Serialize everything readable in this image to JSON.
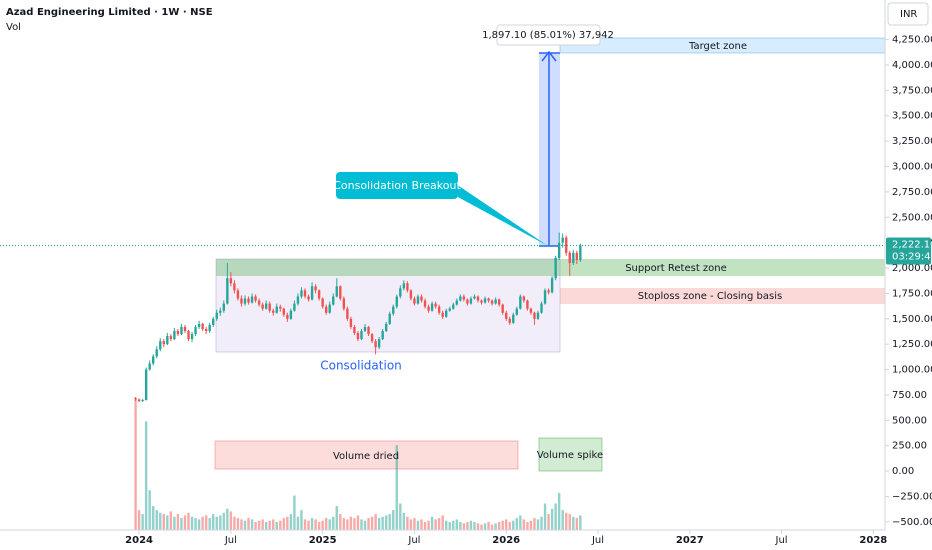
{
  "chart_data": {
    "type": "candlestick",
    "title": "Azad Engineering Limited · 1W · NSE",
    "subtitle": "Vol",
    "currency": "INR",
    "countdown": "03:29:41",
    "last_price_label": "2,222.10",
    "up_color": "#26a69a",
    "down_color": "#ef5350",
    "xlim": [
      -39.4,
      211.3
    ],
    "xticks": [
      {
        "value": 0,
        "label": "2024"
      },
      {
        "value": 26,
        "label": "Jul"
      },
      {
        "value": 52,
        "label": "2025"
      },
      {
        "value": 78,
        "label": "Jul"
      },
      {
        "value": 104,
        "label": "2026"
      },
      {
        "value": 130,
        "label": "Jul"
      },
      {
        "value": 156,
        "label": "2027"
      },
      {
        "value": 182,
        "label": "Jul"
      },
      {
        "value": 208,
        "label": "2028"
      }
    ],
    "ylim": [
      -580,
      4640
    ],
    "yticks": [
      {
        "value": 4250,
        "label": "4,250.00"
      },
      {
        "value": 4000,
        "label": "4,000.00"
      },
      {
        "value": 3750,
        "label": "3,750.00"
      },
      {
        "value": 3500,
        "label": "3,500.00"
      },
      {
        "value": 3250,
        "label": "3,250.00"
      },
      {
        "value": 3000,
        "label": "3,000.00"
      },
      {
        "value": 2750,
        "label": "2,750.00"
      },
      {
        "value": 2500,
        "label": "2,500.00"
      },
      {
        "value": 2250,
        "label": "2,250.00"
      },
      {
        "value": 2000,
        "label": "2,000.00"
      },
      {
        "value": 1750,
        "label": "1,750.00"
      },
      {
        "value": 1500,
        "label": "1,500.00"
      },
      {
        "value": 1250,
        "label": "1,250.00"
      },
      {
        "value": 1000,
        "label": "1,000.00"
      },
      {
        "value": 750,
        "label": "750.00"
      },
      {
        "value": 500,
        "label": "500.00"
      },
      {
        "value": 250,
        "label": "250.00"
      },
      {
        "value": 0,
        "label": "0.00"
      },
      {
        "value": -250,
        "label": "−250.00"
      },
      {
        "value": -500,
        "label": "−500.00"
      }
    ],
    "volume_ylim": [
      0,
      4000
    ],
    "x": [
      -1,
      0,
      1,
      2,
      3,
      4,
      5,
      6,
      7,
      8,
      9,
      10,
      11,
      12,
      13,
      14,
      15,
      16,
      17,
      18,
      19,
      20,
      21,
      22,
      23,
      24,
      25,
      26,
      27,
      28,
      29,
      30,
      31,
      32,
      33,
      34,
      35,
      36,
      37,
      38,
      39,
      40,
      41,
      42,
      43,
      44,
      45,
      46,
      47,
      48,
      49,
      50,
      51,
      52,
      53,
      54,
      55,
      56,
      57,
      58,
      59,
      60,
      61,
      62,
      63,
      64,
      65,
      66,
      67,
      68,
      69,
      70,
      71,
      72,
      73,
      74,
      75,
      76,
      77,
      78,
      79,
      80,
      81,
      82,
      83,
      84,
      85,
      86,
      87,
      88,
      89,
      90,
      91,
      92,
      93,
      94,
      95,
      96,
      97,
      98,
      99,
      100,
      101,
      102,
      103,
      104,
      105,
      106,
      107,
      108,
      109,
      110,
      111,
      112,
      113,
      114,
      115,
      116,
      117,
      118,
      119,
      120,
      121,
      122,
      123,
      124,
      125
    ],
    "ohlc": [
      [
        720,
        730,
        690,
        705
      ],
      [
        705,
        715,
        680,
        690
      ],
      [
        690,
        710,
        680,
        700
      ],
      [
        700,
        1020,
        695,
        1000
      ],
      [
        1000,
        1090,
        990,
        1060
      ],
      [
        1060,
        1150,
        1040,
        1130
      ],
      [
        1130,
        1230,
        1110,
        1200
      ],
      [
        1200,
        1310,
        1180,
        1280
      ],
      [
        1280,
        1300,
        1220,
        1250
      ],
      [
        1250,
        1360,
        1240,
        1330
      ],
      [
        1330,
        1350,
        1280,
        1300
      ],
      [
        1300,
        1410,
        1290,
        1380
      ],
      [
        1380,
        1400,
        1330,
        1350
      ],
      [
        1350,
        1450,
        1340,
        1420
      ],
      [
        1420,
        1440,
        1360,
        1380
      ],
      [
        1380,
        1390,
        1280,
        1300
      ],
      [
        1300,
        1370,
        1270,
        1350
      ],
      [
        1350,
        1440,
        1330,
        1420
      ],
      [
        1420,
        1480,
        1400,
        1450
      ],
      [
        1450,
        1460,
        1380,
        1400
      ],
      [
        1400,
        1420,
        1350,
        1380
      ],
      [
        1380,
        1460,
        1360,
        1440
      ],
      [
        1440,
        1520,
        1420,
        1500
      ],
      [
        1500,
        1590,
        1480,
        1560
      ],
      [
        1560,
        1610,
        1530,
        1580
      ],
      [
        1580,
        1680,
        1560,
        1650
      ],
      [
        1650,
        2050,
        1640,
        1900
      ],
      [
        1900,
        1960,
        1820,
        1850
      ],
      [
        1850,
        1880,
        1750,
        1780
      ],
      [
        1780,
        1800,
        1680,
        1700
      ],
      [
        1700,
        1730,
        1620,
        1650
      ],
      [
        1650,
        1730,
        1630,
        1700
      ],
      [
        1700,
        1720,
        1640,
        1660
      ],
      [
        1660,
        1750,
        1650,
        1720
      ],
      [
        1720,
        1740,
        1660,
        1680
      ],
      [
        1680,
        1700,
        1620,
        1640
      ],
      [
        1640,
        1660,
        1580,
        1600
      ],
      [
        1600,
        1680,
        1590,
        1650
      ],
      [
        1650,
        1670,
        1560,
        1580
      ],
      [
        1580,
        1600,
        1530,
        1560
      ],
      [
        1560,
        1650,
        1550,
        1620
      ],
      [
        1620,
        1640,
        1570,
        1600
      ],
      [
        1600,
        1610,
        1520,
        1540
      ],
      [
        1540,
        1560,
        1470,
        1500
      ],
      [
        1500,
        1600,
        1490,
        1580
      ],
      [
        1580,
        1680,
        1570,
        1650
      ],
      [
        1650,
        1750,
        1630,
        1720
      ],
      [
        1720,
        1810,
        1700,
        1780
      ],
      [
        1780,
        1800,
        1700,
        1720
      ],
      [
        1720,
        1740,
        1670,
        1690
      ],
      [
        1690,
        1860,
        1680,
        1820
      ],
      [
        1820,
        1840,
        1750,
        1780
      ],
      [
        1780,
        1790,
        1680,
        1700
      ],
      [
        1700,
        1710,
        1600,
        1620
      ],
      [
        1620,
        1640,
        1540,
        1560
      ],
      [
        1560,
        1670,
        1550,
        1640
      ],
      [
        1640,
        1750,
        1630,
        1720
      ],
      [
        1720,
        1900,
        1710,
        1820
      ],
      [
        1820,
        1830,
        1680,
        1700
      ],
      [
        1700,
        1720,
        1580,
        1600
      ],
      [
        1600,
        1620,
        1480,
        1500
      ],
      [
        1500,
        1520,
        1400,
        1420
      ],
      [
        1420,
        1440,
        1340,
        1360
      ],
      [
        1360,
        1380,
        1280,
        1300
      ],
      [
        1300,
        1400,
        1290,
        1380
      ],
      [
        1380,
        1450,
        1370,
        1420
      ],
      [
        1420,
        1430,
        1330,
        1350
      ],
      [
        1350,
        1360,
        1260,
        1280
      ],
      [
        1280,
        1300,
        1150,
        1220
      ],
      [
        1220,
        1320,
        1200,
        1300
      ],
      [
        1300,
        1400,
        1290,
        1380
      ],
      [
        1380,
        1470,
        1370,
        1450
      ],
      [
        1450,
        1570,
        1440,
        1550
      ],
      [
        1550,
        1640,
        1530,
        1620
      ],
      [
        1620,
        1740,
        1600,
        1720
      ],
      [
        1720,
        1830,
        1700,
        1800
      ],
      [
        1800,
        1880,
        1780,
        1850
      ],
      [
        1850,
        1870,
        1760,
        1780
      ],
      [
        1780,
        1790,
        1680,
        1700
      ],
      [
        1700,
        1720,
        1630,
        1650
      ],
      [
        1650,
        1740,
        1640,
        1720
      ],
      [
        1720,
        1740,
        1660,
        1680
      ],
      [
        1680,
        1700,
        1600,
        1620
      ],
      [
        1620,
        1640,
        1560,
        1580
      ],
      [
        1580,
        1670,
        1570,
        1650
      ],
      [
        1650,
        1670,
        1600,
        1620
      ],
      [
        1620,
        1640,
        1540,
        1560
      ],
      [
        1560,
        1580,
        1500,
        1520
      ],
      [
        1520,
        1600,
        1510,
        1580
      ],
      [
        1580,
        1620,
        1570,
        1600
      ],
      [
        1600,
        1660,
        1590,
        1640
      ],
      [
        1640,
        1700,
        1630,
        1680
      ],
      [
        1680,
        1740,
        1670,
        1720
      ],
      [
        1720,
        1740,
        1670,
        1690
      ],
      [
        1690,
        1700,
        1630,
        1650
      ],
      [
        1650,
        1720,
        1640,
        1700
      ],
      [
        1700,
        1740,
        1690,
        1720
      ],
      [
        1720,
        1730,
        1660,
        1680
      ],
      [
        1680,
        1690,
        1640,
        1660
      ],
      [
        1660,
        1720,
        1650,
        1700
      ],
      [
        1700,
        1710,
        1660,
        1680
      ],
      [
        1680,
        1690,
        1630,
        1650
      ],
      [
        1650,
        1710,
        1640,
        1690
      ],
      [
        1690,
        1700,
        1620,
        1640
      ],
      [
        1640,
        1650,
        1540,
        1560
      ],
      [
        1560,
        1580,
        1480,
        1500
      ],
      [
        1500,
        1520,
        1440,
        1460
      ],
      [
        1460,
        1560,
        1450,
        1540
      ],
      [
        1540,
        1620,
        1530,
        1600
      ],
      [
        1600,
        1740,
        1590,
        1720
      ],
      [
        1720,
        1730,
        1660,
        1680
      ],
      [
        1680,
        1690,
        1580,
        1600
      ],
      [
        1600,
        1610,
        1540,
        1560
      ],
      [
        1560,
        1570,
        1440,
        1500
      ],
      [
        1500,
        1580,
        1490,
        1560
      ],
      [
        1560,
        1670,
        1550,
        1650
      ],
      [
        1650,
        1800,
        1640,
        1780
      ],
      [
        1780,
        1800,
        1740,
        1760
      ],
      [
        1760,
        1920,
        1750,
        1900
      ],
      [
        1900,
        2120,
        1880,
        2100
      ],
      [
        2100,
        2350,
        2080,
        2250
      ],
      [
        2250,
        2340,
        2200,
        2300
      ],
      [
        2300,
        2320,
        2120,
        2150
      ],
      [
        2150,
        2170,
        1920,
        2050
      ],
      [
        2050,
        2180,
        2030,
        2150
      ],
      [
        2150,
        2170,
        2040,
        2080
      ],
      [
        2080,
        2240,
        2060,
        2222.1
      ]
    ],
    "volume": [
      980,
      150,
      120,
      820,
      300,
      180,
      150,
      130,
      120,
      110,
      140,
      100,
      120,
      90,
      110,
      130,
      100,
      90,
      80,
      100,
      110,
      90,
      120,
      100,
      110,
      130,
      160,
      140,
      100,
      90,
      80,
      70,
      90,
      80,
      60,
      70,
      80,
      60,
      70,
      80,
      60,
      70,
      90,
      100,
      120,
      260,
      100,
      150,
      80,
      70,
      90,
      80,
      60,
      70,
      90,
      80,
      100,
      180,
      120,
      90,
      80,
      100,
      90,
      110,
      80,
      70,
      90,
      100,
      120,
      90,
      100,
      110,
      120,
      150,
      640,
      200,
      130,
      100,
      80,
      90,
      70,
      80,
      60,
      70,
      100,
      80,
      90,
      110,
      70,
      60,
      70,
      80,
      60,
      50,
      60,
      70,
      60,
      50,
      40,
      50,
      60,
      40,
      50,
      60,
      70,
      80,
      60,
      70,
      90,
      110,
      80,
      60,
      70,
      90,
      80,
      100,
      200,
      120,
      160,
      200,
      280,
      150,
      130,
      120,
      100,
      90,
      110
    ],
    "annotations": {
      "target": "Target zone",
      "support": "Support Retest zone",
      "stoploss": "Stoploss zone -  Closing basis",
      "consolidation": "Consolidation",
      "breakout": "Consolidation Breakout",
      "volume_dried": "Volume dried",
      "volume_spike": "Volume spike",
      "measure": "1,897.10 (85.01%) 37,942"
    }
  }
}
